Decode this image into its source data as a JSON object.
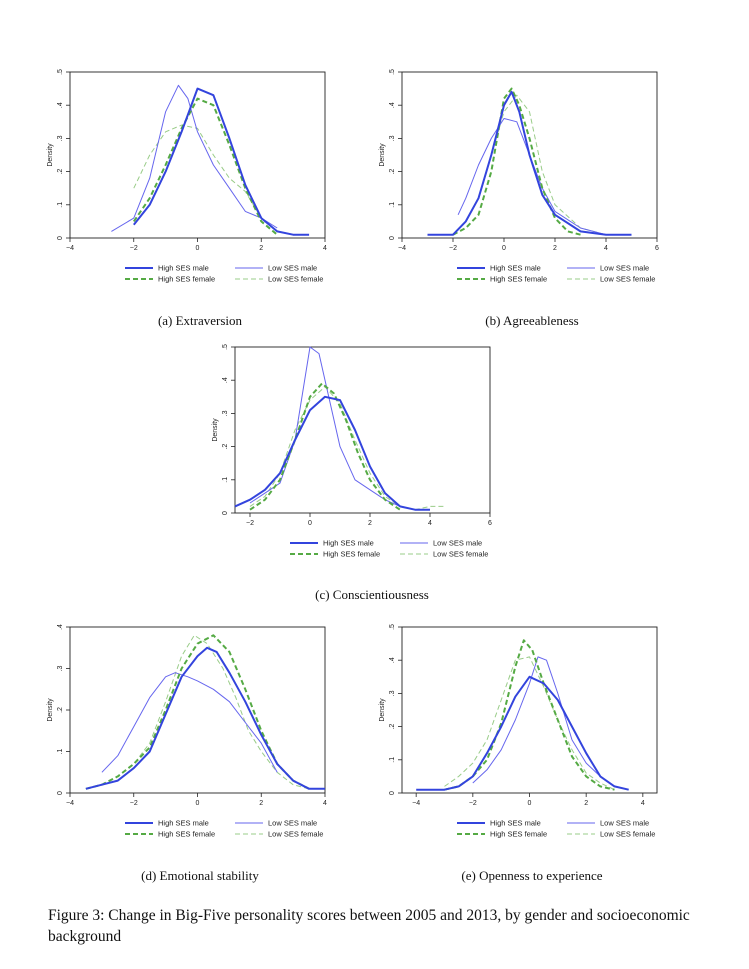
{
  "figure": {
    "caption": "Figure 3: Change in Big-Five personality scores between 2005 and 2013, by gender and socioeconomic background",
    "legend_labels": [
      "High SES male",
      "Low SES male",
      "High SES female",
      "Low SES female"
    ],
    "series_styles": {
      "High SES male": {
        "color": "#3344dd",
        "dash": "solid",
        "width": "thick"
      },
      "Low SES male": {
        "color": "#6666ee",
        "dash": "solid",
        "width": "thin"
      },
      "High SES female": {
        "color": "#55aa44",
        "dash": "dashed",
        "width": "thick"
      },
      "Low SES female": {
        "color": "#99cc88",
        "dash": "dashed",
        "width": "thin"
      }
    }
  },
  "chart_data": [
    {
      "type": "line",
      "subtitle": "(a) Extraversion",
      "ylabel": "Density",
      "xlabel": "",
      "xlim": [
        -4,
        4
      ],
      "ylim": [
        0,
        0.5
      ],
      "xticks": [
        -4,
        -2,
        0,
        2,
        4
      ],
      "xtick_labels": [
        "−4",
        "−2",
        "0",
        "2",
        "4"
      ],
      "yticks": [
        0,
        0.1,
        0.2,
        0.3,
        0.4,
        0.5
      ],
      "ytick_labels": [
        "0",
        ".1",
        ".2",
        ".3",
        ".4",
        ".5"
      ],
      "series": [
        {
          "name": "High SES male",
          "x": [
            -2.0,
            -1.5,
            -1.0,
            -0.5,
            0.0,
            0.5,
            1.0,
            1.5,
            2.0,
            2.5,
            3.0,
            3.5
          ],
          "y": [
            0.04,
            0.1,
            0.2,
            0.32,
            0.45,
            0.43,
            0.3,
            0.16,
            0.06,
            0.02,
            0.01,
            0.01
          ]
        },
        {
          "name": "Low SES male",
          "x": [
            -2.7,
            -2.0,
            -1.5,
            -1.0,
            -0.6,
            -0.3,
            0.0,
            0.5,
            1.0,
            1.5,
            2.0,
            2.5
          ],
          "y": [
            0.02,
            0.06,
            0.18,
            0.38,
            0.46,
            0.42,
            0.32,
            0.22,
            0.15,
            0.08,
            0.06,
            0.03
          ]
        },
        {
          "name": "High SES female",
          "x": [
            -2.0,
            -1.5,
            -1.0,
            -0.5,
            0.0,
            0.5,
            1.0,
            1.5,
            2.0,
            2.5
          ],
          "y": [
            0.05,
            0.12,
            0.22,
            0.33,
            0.42,
            0.4,
            0.28,
            0.15,
            0.05,
            0.01
          ]
        },
        {
          "name": "Low SES female",
          "x": [
            -2.0,
            -1.5,
            -1.0,
            -0.5,
            0.0,
            0.5,
            1.0,
            1.5,
            2.0,
            2.5
          ],
          "y": [
            0.15,
            0.25,
            0.32,
            0.34,
            0.33,
            0.25,
            0.18,
            0.14,
            0.06,
            0.02
          ]
        }
      ]
    },
    {
      "type": "line",
      "subtitle": "(b) Agreeableness",
      "ylabel": "Density",
      "xlabel": "",
      "xlim": [
        -4,
        6
      ],
      "ylim": [
        0,
        0.5
      ],
      "xticks": [
        -4,
        -2,
        0,
        2,
        4,
        6
      ],
      "xtick_labels": [
        "−4",
        "−2",
        "0",
        "2",
        "4",
        "6"
      ],
      "yticks": [
        0,
        0.1,
        0.2,
        0.3,
        0.4,
        0.5
      ],
      "ytick_labels": [
        "0",
        ".1",
        ".2",
        ".3",
        ".4",
        ".5"
      ],
      "series": [
        {
          "name": "High SES male",
          "x": [
            -3.0,
            -2.0,
            -1.5,
            -1.0,
            -0.5,
            0.0,
            0.3,
            0.6,
            1.0,
            1.5,
            2.0,
            3.0,
            4.0,
            5.0
          ],
          "y": [
            0.01,
            0.01,
            0.05,
            0.12,
            0.25,
            0.4,
            0.44,
            0.38,
            0.25,
            0.13,
            0.07,
            0.02,
            0.01,
            0.01
          ]
        },
        {
          "name": "Low SES male",
          "x": [
            -1.8,
            -1.5,
            -1.0,
            -0.5,
            0.0,
            0.5,
            1.0,
            1.5,
            2.0,
            3.0,
            4.0
          ],
          "y": [
            0.07,
            0.12,
            0.22,
            0.3,
            0.36,
            0.35,
            0.25,
            0.15,
            0.08,
            0.03,
            0.01
          ]
        },
        {
          "name": "High SES female",
          "x": [
            -2.0,
            -1.5,
            -1.0,
            -0.5,
            0.0,
            0.3,
            0.6,
            1.0,
            1.5,
            2.0,
            2.5,
            3.0
          ],
          "y": [
            0.01,
            0.03,
            0.07,
            0.2,
            0.42,
            0.45,
            0.4,
            0.3,
            0.15,
            0.06,
            0.02,
            0.01
          ]
        },
        {
          "name": "Low SES female",
          "x": [
            -2.0,
            -1.5,
            -1.0,
            -0.5,
            0.0,
            0.5,
            1.0,
            1.5,
            2.0,
            3.0,
            4.0
          ],
          "y": [
            0.01,
            0.05,
            0.12,
            0.25,
            0.38,
            0.43,
            0.38,
            0.2,
            0.1,
            0.03,
            0.01
          ]
        }
      ]
    },
    {
      "type": "line",
      "subtitle": "(c) Conscientiousness",
      "ylabel": "Density",
      "xlabel": "",
      "xlim": [
        -2.5,
        6
      ],
      "ylim": [
        0,
        0.5
      ],
      "xticks": [
        -2,
        0,
        2,
        4,
        6
      ],
      "xtick_labels": [
        "−2",
        "0",
        "2",
        "4",
        "6"
      ],
      "yticks": [
        0,
        0.1,
        0.2,
        0.3,
        0.4,
        0.5
      ],
      "ytick_labels": [
        "0",
        ".1",
        ".2",
        ".3",
        ".4",
        ".5"
      ],
      "series": [
        {
          "name": "High SES male",
          "x": [
            -2.5,
            -2.0,
            -1.5,
            -1.0,
            -0.5,
            0.0,
            0.5,
            1.0,
            1.5,
            2.0,
            2.5,
            3.0,
            3.5,
            4.0
          ],
          "y": [
            0.02,
            0.04,
            0.07,
            0.12,
            0.22,
            0.31,
            0.35,
            0.34,
            0.25,
            0.14,
            0.06,
            0.02,
            0.01,
            0.01
          ]
        },
        {
          "name": "Low SES male",
          "x": [
            -2.0,
            -1.5,
            -1.0,
            -0.5,
            0.0,
            0.3,
            0.6,
            1.0,
            1.5,
            2.0,
            2.5,
            3.0,
            3.5
          ],
          "y": [
            0.03,
            0.06,
            0.09,
            0.22,
            0.5,
            0.48,
            0.36,
            0.2,
            0.1,
            0.07,
            0.04,
            0.02,
            0.01
          ]
        },
        {
          "name": "High SES female",
          "x": [
            -2.0,
            -1.5,
            -1.0,
            -0.5,
            0.0,
            0.4,
            0.8,
            1.2,
            1.6,
            2.0,
            2.5,
            3.0
          ],
          "y": [
            0.01,
            0.04,
            0.1,
            0.22,
            0.35,
            0.39,
            0.36,
            0.28,
            0.18,
            0.1,
            0.04,
            0.01
          ]
        },
        {
          "name": "Low SES female",
          "x": [
            -2.0,
            -1.5,
            -1.0,
            -0.5,
            0.0,
            0.5,
            1.0,
            1.5,
            2.0,
            2.5,
            3.0,
            3.5,
            4.0,
            4.5
          ],
          "y": [
            0.02,
            0.05,
            0.12,
            0.25,
            0.34,
            0.38,
            0.33,
            0.22,
            0.12,
            0.05,
            0.02,
            0.01,
            0.02,
            0.02
          ]
        }
      ]
    },
    {
      "type": "line",
      "subtitle": "(d) Emotional stability",
      "ylabel": "Density",
      "xlabel": "",
      "xlim": [
        -4,
        4
      ],
      "ylim": [
        0,
        0.4
      ],
      "xticks": [
        -4,
        -2,
        0,
        2,
        4
      ],
      "xtick_labels": [
        "−4",
        "−2",
        "0",
        "2",
        "4"
      ],
      "yticks": [
        0,
        0.1,
        0.2,
        0.3,
        0.4
      ],
      "ytick_labels": [
        "0",
        ".1",
        ".2",
        ".3",
        ".4"
      ],
      "series": [
        {
          "name": "High SES male",
          "x": [
            -3.5,
            -3.0,
            -2.5,
            -2.0,
            -1.5,
            -1.0,
            -0.5,
            0.0,
            0.3,
            0.6,
            1.0,
            1.5,
            2.0,
            2.5,
            3.0,
            3.5,
            4.0
          ],
          "y": [
            0.01,
            0.02,
            0.03,
            0.06,
            0.1,
            0.19,
            0.28,
            0.33,
            0.35,
            0.34,
            0.29,
            0.22,
            0.14,
            0.07,
            0.03,
            0.01,
            0.01
          ]
        },
        {
          "name": "Low SES male",
          "x": [
            -3.0,
            -2.5,
            -2.0,
            -1.5,
            -1.0,
            -0.7,
            -0.3,
            0.0,
            0.5,
            1.0,
            1.5,
            2.0,
            2.5
          ],
          "y": [
            0.05,
            0.09,
            0.16,
            0.23,
            0.28,
            0.29,
            0.28,
            0.27,
            0.25,
            0.22,
            0.17,
            0.12,
            0.05
          ]
        },
        {
          "name": "High SES female",
          "x": [
            -3.5,
            -3.0,
            -2.5,
            -2.0,
            -1.5,
            -1.0,
            -0.5,
            0.0,
            0.5,
            1.0,
            1.5,
            2.0,
            2.5,
            3.0,
            3.5
          ],
          "y": [
            0.01,
            0.02,
            0.04,
            0.07,
            0.11,
            0.2,
            0.3,
            0.36,
            0.38,
            0.34,
            0.25,
            0.15,
            0.07,
            0.03,
            0.01
          ]
        },
        {
          "name": "Low SES female",
          "x": [
            -3.5,
            -3.0,
            -2.5,
            -2.0,
            -1.5,
            -1.0,
            -0.5,
            -0.1,
            0.3,
            0.8,
            1.2,
            1.6,
            2.0,
            2.5,
            3.0,
            3.5
          ],
          "y": [
            0.01,
            0.02,
            0.04,
            0.07,
            0.12,
            0.22,
            0.33,
            0.38,
            0.36,
            0.3,
            0.23,
            0.15,
            0.1,
            0.05,
            0.02,
            0.01
          ]
        }
      ]
    },
    {
      "type": "line",
      "subtitle": "(e) Openness to experience",
      "ylabel": "Density",
      "xlabel": "",
      "xlim": [
        -4.5,
        4.5
      ],
      "ylim": [
        0,
        0.5
      ],
      "xticks": [
        -4,
        -2,
        0,
        2,
        4
      ],
      "xtick_labels": [
        "−4",
        "−2",
        "0",
        "2",
        "4"
      ],
      "yticks": [
        0,
        0.1,
        0.2,
        0.3,
        0.4,
        0.5
      ],
      "ytick_labels": [
        "0",
        ".1",
        ".2",
        ".3",
        ".4",
        ".5"
      ],
      "series": [
        {
          "name": "High SES male",
          "x": [
            -4.0,
            -3.0,
            -2.5,
            -2.0,
            -1.5,
            -1.0,
            -0.5,
            0.0,
            0.5,
            1.0,
            1.5,
            2.0,
            2.5,
            3.0,
            3.5
          ],
          "y": [
            0.01,
            0.01,
            0.02,
            0.05,
            0.12,
            0.2,
            0.29,
            0.35,
            0.33,
            0.28,
            0.2,
            0.12,
            0.05,
            0.02,
            0.01
          ]
        },
        {
          "name": "Low SES male",
          "x": [
            -2.0,
            -1.5,
            -1.0,
            -0.5,
            0.0,
            0.3,
            0.6,
            1.0,
            1.5,
            2.0,
            2.5,
            3.0
          ],
          "y": [
            0.03,
            0.07,
            0.13,
            0.22,
            0.33,
            0.41,
            0.4,
            0.3,
            0.16,
            0.09,
            0.05,
            0.02
          ]
        },
        {
          "name": "High SES female",
          "x": [
            -3.0,
            -2.5,
            -2.0,
            -1.5,
            -1.0,
            -0.5,
            -0.2,
            0.1,
            0.5,
            1.0,
            1.5,
            2.0,
            2.5,
            3.0
          ],
          "y": [
            0.01,
            0.02,
            0.05,
            0.1,
            0.21,
            0.38,
            0.46,
            0.43,
            0.33,
            0.22,
            0.11,
            0.05,
            0.02,
            0.01
          ]
        },
        {
          "name": "Low SES female",
          "x": [
            -3.0,
            -2.5,
            -2.0,
            -1.5,
            -1.0,
            -0.5,
            0.0,
            0.5,
            1.0,
            1.5,
            2.0,
            2.5,
            3.0
          ],
          "y": [
            0.02,
            0.05,
            0.09,
            0.16,
            0.28,
            0.4,
            0.41,
            0.32,
            0.22,
            0.13,
            0.06,
            0.03,
            0.01
          ]
        }
      ]
    }
  ]
}
